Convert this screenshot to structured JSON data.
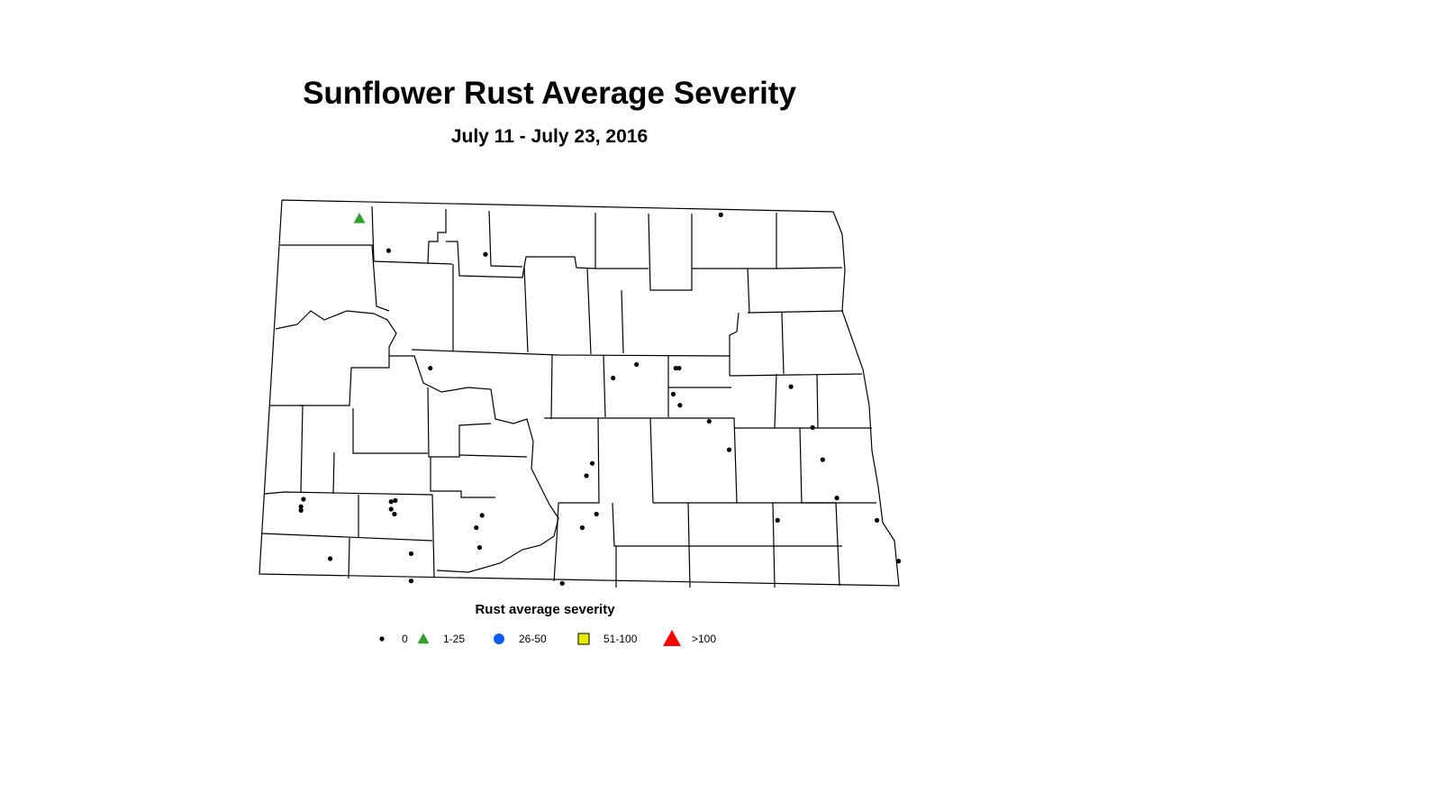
{
  "title": "Sunflower Rust Average Severity",
  "subtitle": "July 11 - July 23, 2016",
  "legend": {
    "title": "Rust average severity",
    "items": [
      {
        "label": "0",
        "symbol": "small-dot",
        "color": "#000000"
      },
      {
        "label": "1-25",
        "symbol": "triangle",
        "color": "#33a02c"
      },
      {
        "label": "26-50",
        "symbol": "circle",
        "color": "#0a5cf0"
      },
      {
        "label": "51-100",
        "symbol": "square",
        "color": "#e8e800"
      },
      {
        "label": ">100",
        "symbol": "triangle",
        "color": "#ff0000"
      }
    ]
  },
  "region": "North Dakota counties",
  "observations": [
    {
      "lon": -102.96,
      "lat": 48.88,
      "category": "1-25"
    },
    {
      "lon": -102.61,
      "lat": 48.62,
      "category": "0"
    },
    {
      "lon": -101.45,
      "lat": 48.59,
      "category": "0"
    },
    {
      "lon": -98.63,
      "lat": 48.91,
      "category": "0"
    },
    {
      "lon": -102.11,
      "lat": 47.67,
      "category": "0"
    },
    {
      "lon": -99.64,
      "lat": 47.7,
      "category": "0"
    },
    {
      "lon": -99.92,
      "lat": 47.59,
      "category": "0"
    },
    {
      "lon": -99.17,
      "lat": 47.67,
      "category": "0"
    },
    {
      "lon": -99.13,
      "lat": 47.67,
      "category": "0"
    },
    {
      "lon": -99.2,
      "lat": 47.46,
      "category": "0"
    },
    {
      "lon": -99.12,
      "lat": 47.37,
      "category": "0"
    },
    {
      "lon": -98.77,
      "lat": 47.24,
      "category": "0"
    },
    {
      "lon": -97.79,
      "lat": 47.52,
      "category": "0"
    },
    {
      "lon": -97.53,
      "lat": 47.19,
      "category": "0"
    },
    {
      "lon": -98.53,
      "lat": 47.01,
      "category": "0"
    },
    {
      "lon": -97.41,
      "lat": 46.93,
      "category": "0"
    },
    {
      "lon": -100.17,
      "lat": 46.9,
      "category": "0"
    },
    {
      "lon": -100.24,
      "lat": 46.8,
      "category": "0"
    },
    {
      "lon": -97.24,
      "lat": 46.62,
      "category": "0"
    },
    {
      "lon": -100.12,
      "lat": 46.49,
      "category": "0"
    },
    {
      "lon": -100.29,
      "lat": 46.38,
      "category": "0"
    },
    {
      "lon": -97.95,
      "lat": 46.44,
      "category": "0"
    },
    {
      "lon": -96.76,
      "lat": 46.44,
      "category": "0"
    },
    {
      "lon": -96.5,
      "lat": 46.11,
      "category": "0"
    },
    {
      "lon": -100.53,
      "lat": 45.93,
      "category": "0"
    },
    {
      "lon": -103.63,
      "lat": 46.61,
      "category": "0"
    },
    {
      "lon": -103.66,
      "lat": 46.55,
      "category": "0"
    },
    {
      "lon": -103.66,
      "lat": 46.52,
      "category": "0"
    },
    {
      "lon": -102.58,
      "lat": 46.59,
      "category": "0"
    },
    {
      "lon": -102.53,
      "lat": 46.6,
      "category": "0"
    },
    {
      "lon": -102.58,
      "lat": 46.53,
      "category": "0"
    },
    {
      "lon": -102.54,
      "lat": 46.49,
      "category": "0"
    },
    {
      "lon": -101.49,
      "lat": 46.48,
      "category": "0"
    },
    {
      "lon": -101.56,
      "lat": 46.38,
      "category": "0"
    },
    {
      "lon": -101.52,
      "lat": 46.22,
      "category": "0"
    },
    {
      "lon": -103.31,
      "lat": 46.13,
      "category": "0"
    },
    {
      "lon": -102.34,
      "lat": 46.17,
      "category": "0"
    },
    {
      "lon": -102.34,
      "lat": 45.95,
      "category": "0"
    }
  ]
}
